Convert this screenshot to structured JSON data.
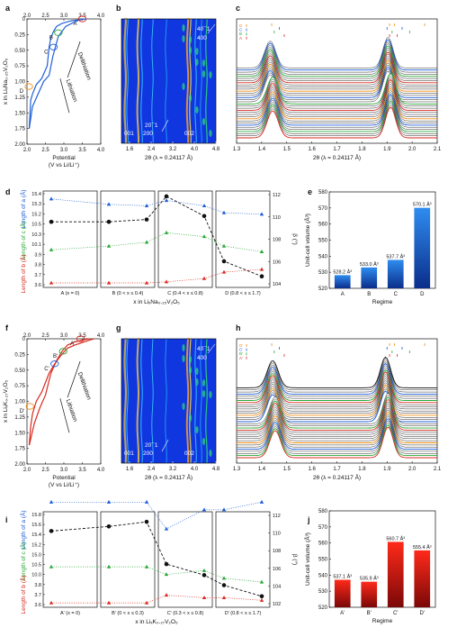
{
  "figure": {
    "panel_letters": [
      "a",
      "b",
      "c",
      "d",
      "e",
      "f",
      "g",
      "h",
      "i",
      "j"
    ],
    "colors": {
      "blue": "#1f5fd8",
      "red": "#d82a20",
      "green": "#2aa838",
      "orange": "#f08c10",
      "black": "#111111",
      "heat_bg": "#1036e0"
    }
  },
  "chart_data": [
    {
      "panel": "a",
      "type": "line",
      "xlabel": "Potential\n(V vs Li/Li⁺)",
      "ylabel": "x in LiₓNa₀.₂₅V₂O₅",
      "xticks": [
        "2.0",
        "2.5",
        "3.0",
        "3.5",
        "4.0"
      ],
      "yticks": [
        "0",
        "0.25",
        "0.50",
        "0.75",
        "1.00",
        "1.25",
        "1.50",
        "1.75",
        "2.00"
      ],
      "xlim": [
        2.0,
        4.0
      ],
      "ylim": [
        2.0,
        0
      ],
      "series": [
        {
          "color": "blue",
          "x": [
            2.06,
            2.1,
            2.15,
            2.25,
            2.4,
            2.55,
            2.6,
            2.65,
            2.72,
            2.8,
            2.95,
            3.2,
            3.45,
            3.62
          ],
          "y": [
            1.75,
            1.3,
            1.2,
            1.05,
            0.95,
            0.75,
            0.45,
            0.3,
            0.2,
            0.12,
            0.07,
            0.03,
            0.01,
            0
          ]
        },
        {
          "color": "blue",
          "x": [
            3.55,
            3.4,
            3.25,
            3.05,
            2.85,
            2.7,
            2.6,
            2.45,
            2.3,
            2.15,
            2.06
          ],
          "y": [
            0,
            0.02,
            0.06,
            0.12,
            0.28,
            0.6,
            0.9,
            1.0,
            1.2,
            1.4,
            1.75
          ]
        }
      ],
      "markers": [
        {
          "label": "A",
          "x": 3.5,
          "y": 0.0,
          "color": "red"
        },
        {
          "label": "B",
          "x": 2.85,
          "y": 0.22,
          "color": "green"
        },
        {
          "label": "C",
          "x": 2.72,
          "y": 0.45,
          "color": "blue"
        },
        {
          "label": "D",
          "x": 2.05,
          "y": 1.08,
          "color": "orange"
        }
      ],
      "annotations": [
        "Delithiation",
        "Lithiation"
      ]
    },
    {
      "panel": "b",
      "type": "heatmap",
      "xlabel": "2θ (λ = 0.24117 Å)",
      "xticks": [
        "1.6",
        "2.4",
        "3.2",
        "4.0",
        "4.8"
      ],
      "xlim": [
        1.3,
        4.8
      ],
      "peak_labels": [
        "001",
        "200",
        "20¯1",
        "002",
        "40¯1",
        "400"
      ]
    },
    {
      "panel": "c",
      "type": "line",
      "xlabel": "2θ (λ = 0.24117 Å)",
      "xticks": [
        "1.3",
        "1.4",
        "1.5",
        "1.6",
        "1.7",
        "1.8",
        "1.9",
        "2.0",
        "2.1"
      ],
      "xlim": [
        1.3,
        2.1
      ],
      "legend": [
        "D",
        "C",
        "B",
        "A"
      ],
      "peaks": [
        1.44,
        1.91
      ],
      "curve_colors": [
        "red",
        "black",
        "black",
        "green",
        "black",
        "black",
        "blue",
        "black",
        "black",
        "orange",
        "black",
        "black",
        "black"
      ]
    },
    {
      "panel": "d",
      "type": "scatter",
      "ylabel_a": "Length of a (Å)",
      "ylabel_c": "Length of c (Å)",
      "ylabel_b": "Length of b (Å)",
      "yticks_left": [
        "15.4",
        "15.3",
        "15.2",
        "10.5",
        "10.3",
        "10.1",
        "3.9",
        "3.8",
        "3.7",
        "3.6"
      ],
      "ylabel_right": "β (°)",
      "yticks_right": [
        "112",
        "110",
        "108",
        "106",
        "104"
      ],
      "categories": [
        "A (x = 0)",
        "B (0 < x ≤ 0.4)",
        "C (0.4 < x ≤ 0.8)",
        "D (0.8 < x ≤ 1.7)"
      ],
      "xlabel": "x in LiₓNa₀.₂₅V₂O₅",
      "series": [
        {
          "name": "a",
          "color": "blue",
          "values": [
            [
              15.42
            ],
            [
              15.35,
              15.33
            ],
            [
              15.4,
              15.33
            ],
            [
              15.24,
              15.22
            ]
          ]
        },
        {
          "name": "c",
          "color": "green",
          "values": [
            [
              10.1
            ],
            [
              10.2,
              10.3
            ],
            [
              10.55,
              10.45
            ],
            [
              10.2,
              10.05
            ]
          ]
        },
        {
          "name": "b",
          "color": "red",
          "values": [
            [
              3.6
            ],
            [
              3.6,
              3.6
            ],
            [
              3.62,
              3.68
            ],
            [
              3.8,
              3.85
            ]
          ]
        },
        {
          "name": "β",
          "color": "black",
          "values": [
            [
              109.5
            ],
            [
              109.5,
              109.7
            ],
            [
              111.7,
              110.0
            ],
            [
              106.1,
              104.8
            ]
          ]
        }
      ]
    },
    {
      "panel": "e",
      "type": "bar",
      "categories": [
        "A",
        "B",
        "C",
        "D"
      ],
      "values": [
        528.2,
        533.0,
        537.7,
        570.1
      ],
      "labels": [
        "528.2 Å³",
        "533.0 Å³",
        "537.7 Å³",
        "570.1 Å³"
      ],
      "xlabel": "Regime",
      "ylabel": "Unit-cell volume (Å³)",
      "ylim": [
        520,
        580
      ],
      "yticks": [
        "520",
        "530",
        "540",
        "550",
        "560",
        "570",
        "580"
      ],
      "color": "blue"
    },
    {
      "panel": "f",
      "type": "line",
      "xlabel": "Potential\n(V vs Li/Li⁺)",
      "ylabel": "x in LiₓK₀.₂₇V₂O₅",
      "xticks": [
        "2.0",
        "2.5",
        "3.0",
        "3.5",
        "4.0"
      ],
      "yticks": [
        "0",
        "0.25",
        "0.50",
        "0.75",
        "1.00",
        "1.25",
        "1.50",
        "1.75",
        "2.00"
      ],
      "xlim": [
        2.0,
        4.0
      ],
      "ylim": [
        2.0,
        0
      ],
      "series": [
        {
          "color": "red",
          "x": [
            2.06,
            2.1,
            2.15,
            2.25,
            2.4,
            2.6,
            2.75,
            2.9,
            3.1,
            3.3,
            3.5,
            3.7,
            3.82
          ],
          "y": [
            1.7,
            1.4,
            1.2,
            1.0,
            0.85,
            0.55,
            0.4,
            0.28,
            0.15,
            0.1,
            0.06,
            0.02,
            0
          ]
        },
        {
          "color": "red",
          "x": [
            3.7,
            3.5,
            3.3,
            3.1,
            2.95,
            2.8,
            2.65,
            2.5,
            2.35,
            2.2,
            2.06
          ],
          "y": [
            0,
            0.02,
            0.05,
            0.1,
            0.2,
            0.35,
            0.55,
            0.9,
            1.1,
            1.35,
            1.7
          ]
        }
      ],
      "markers": [
        {
          "label": "A'",
          "x": 3.45,
          "y": 0.0,
          "color": "red"
        },
        {
          "label": "B'",
          "x": 2.98,
          "y": 0.2,
          "color": "green"
        },
        {
          "label": "C'",
          "x": 2.75,
          "y": 0.4,
          "color": "blue"
        },
        {
          "label": "D'",
          "x": 2.08,
          "y": 1.08,
          "color": "orange"
        }
      ],
      "annotations": [
        "Delithiation",
        "Lithiation"
      ]
    },
    {
      "panel": "g",
      "type": "heatmap",
      "xlabel": "2θ (λ = 0.24117 Å)",
      "xticks": [
        "1.6",
        "2.4",
        "3.2",
        "4.0",
        "4.8"
      ],
      "xlim": [
        1.3,
        4.8
      ],
      "peak_labels": [
        "001",
        "200",
        "20¯1",
        "002",
        "40¯1",
        "400"
      ]
    },
    {
      "panel": "h",
      "type": "line",
      "xlabel": "2θ (λ = 0.24117 Å)",
      "xticks": [
        "1.3",
        "1.4",
        "1.5",
        "1.6",
        "1.7",
        "1.8",
        "1.9",
        "2.0",
        "2.1"
      ],
      "xlim": [
        1.3,
        2.1
      ],
      "legend": [
        "D'",
        "C'",
        "B'",
        "A'"
      ],
      "peaks": [
        1.45,
        1.9
      ],
      "curve_colors": [
        "red",
        "green",
        "black",
        "black",
        "blue",
        "black",
        "black",
        "orange",
        "black",
        "black",
        "black",
        "black",
        "black"
      ]
    },
    {
      "panel": "i",
      "type": "scatter",
      "ylabel_a": "Length of a (Å)",
      "ylabel_c": "Length of c (Å)",
      "ylabel_b": "Length of b (Å)",
      "yticks_left": [
        "15.8",
        "15.6",
        "15.4",
        "15.2",
        "15.0",
        "10.5",
        "10.0",
        "3.8",
        "3.7",
        "3.6"
      ],
      "ylabel_right": "β (°)",
      "yticks_right": [
        "112",
        "110",
        "108",
        "106",
        "104",
        "102"
      ],
      "categories": [
        "A' (x = 0)",
        "B' (0 < x ≤ 0.3)",
        "C' (0.3 < x ≤ 0.8)",
        "D' (0.8 < x ≤ 1.7)"
      ],
      "xlabel": "x in LiₓK₀.₂₇V₂O₅",
      "series": [
        {
          "name": "a",
          "color": "blue",
          "values": [
            [
              15.65
            ],
            [
              15.65,
              15.65
            ],
            [
              15.3,
              15.55
            ],
            [
              15.55,
              15.65
            ]
          ]
        },
        {
          "name": "c",
          "color": "green",
          "values": [
            [
              10.2
            ],
            [
              10.2,
              10.2
            ],
            [
              10.0,
              10.1
            ],
            [
              9.9,
              9.8
            ]
          ]
        },
        {
          "name": "b",
          "color": "red",
          "values": [
            [
              3.6
            ],
            [
              3.6,
              3.6
            ],
            [
              3.75,
              3.7
            ],
            [
              3.7,
              3.65
            ]
          ]
        },
        {
          "name": "β",
          "color": "black",
          "values": [
            [
              110.1
            ],
            [
              110.6,
              111.1
            ],
            [
              106.5,
              105.3
            ],
            [
              104.2,
              103.0
            ]
          ]
        }
      ]
    },
    {
      "panel": "j",
      "type": "bar",
      "categories": [
        "A'",
        "B'",
        "C'",
        "D'"
      ],
      "values": [
        537.1,
        535.9,
        560.7,
        555.4
      ],
      "labels": [
        "537.1 Å³",
        "535.9 Å³",
        "560.7 Å³",
        "555.4 Å³"
      ],
      "xlabel": "Regime",
      "ylabel": "Unit-cell volume (Å³)",
      "ylim": [
        520,
        580
      ],
      "yticks": [
        "520",
        "530",
        "540",
        "550",
        "560",
        "570",
        "580"
      ],
      "color": "red"
    }
  ]
}
